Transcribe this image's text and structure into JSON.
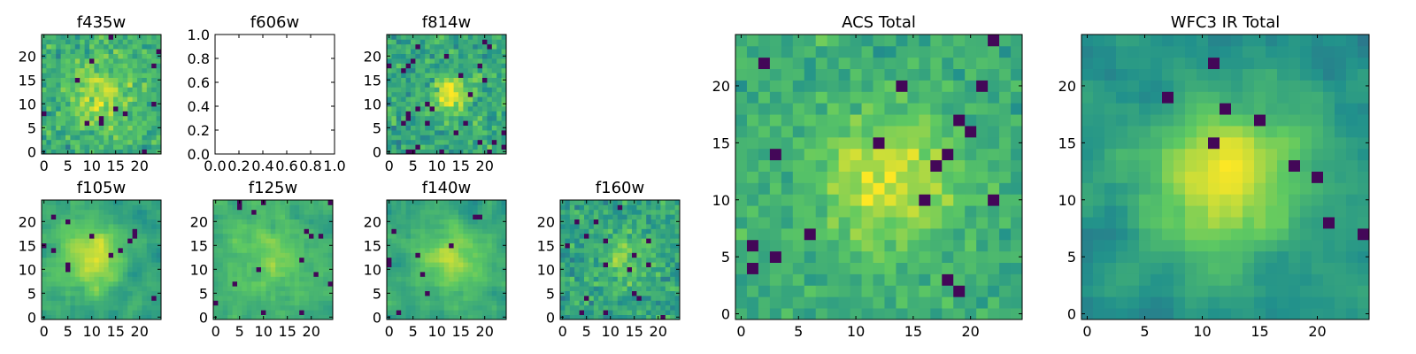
{
  "figure": {
    "background": "#ffffff",
    "frame_color": "#000000"
  },
  "colormap": {
    "name": "viridis",
    "stops": [
      "#440154",
      "#3b528b",
      "#21918c",
      "#5ec962",
      "#fde725"
    ]
  },
  "chart_data": [
    {
      "type": "heatmap",
      "key": "f435w",
      "title": "f435w",
      "size": 25,
      "empty": false,
      "seed": 11,
      "smooth": 0,
      "noise": 1.0,
      "blob": {
        "x": 12,
        "y": 12,
        "r": 5,
        "amp": 0.25
      },
      "base": 0.62,
      "spread": 0.27,
      "dark_frac": 0.025,
      "xticks": [
        "0",
        "5",
        "10",
        "15",
        "20"
      ],
      "yticks": [
        "0",
        "5",
        "10",
        "15",
        "20"
      ],
      "xlim": [
        -0.5,
        24.5
      ],
      "ylim": [
        -0.5,
        24.5
      ]
    },
    {
      "type": "heatmap",
      "key": "f606w",
      "title": "f606w",
      "size": 25,
      "empty": true,
      "xticks": [
        "0.0",
        "0.2",
        "0.4",
        "0.6",
        "0.8",
        "1.0"
      ],
      "yticks": [
        "0.0",
        "0.2",
        "0.4",
        "0.6",
        "0.8",
        "1.0"
      ],
      "xlim": [
        0,
        1
      ],
      "ylim": [
        0,
        1
      ]
    },
    {
      "type": "heatmap",
      "key": "f814w",
      "title": "f814w",
      "size": 25,
      "empty": false,
      "seed": 23,
      "smooth": 0,
      "noise": 1.0,
      "blob": {
        "x": 13,
        "y": 12,
        "r": 2.5,
        "amp": 0.45
      },
      "base": 0.6,
      "spread": 0.28,
      "dark_frac": 0.03,
      "xticks": [
        "0",
        "5",
        "10",
        "15",
        "20"
      ],
      "yticks": [
        "0",
        "5",
        "10",
        "15",
        "20"
      ],
      "xlim": [
        -0.5,
        24.5
      ],
      "ylim": [
        -0.5,
        24.5
      ]
    },
    {
      "type": "heatmap",
      "key": "f105w",
      "title": "f105w",
      "size": 25,
      "empty": false,
      "seed": 37,
      "smooth": 1,
      "noise": 0.8,
      "blob": {
        "x": 10,
        "y": 13,
        "r": 5,
        "amp": 0.35
      },
      "base": 0.58,
      "spread": 0.26,
      "dark_frac": 0.02,
      "xticks": [
        "0",
        "5",
        "10",
        "15",
        "20"
      ],
      "yticks": [
        "0",
        "5",
        "10",
        "15",
        "20"
      ],
      "xlim": [
        -0.5,
        24.5
      ],
      "ylim": [
        -0.5,
        24.5
      ]
    },
    {
      "type": "heatmap",
      "key": "f125w",
      "title": "f125w",
      "size": 25,
      "empty": false,
      "seed": 41,
      "smooth": 1,
      "noise": 0.8,
      "blob": {
        "x": 12,
        "y": 12,
        "r": 6,
        "amp": 0.15
      },
      "base": 0.62,
      "spread": 0.24,
      "dark_frac": 0.02,
      "xticks": [
        "0",
        "5",
        "10",
        "15",
        "20"
      ],
      "yticks": [
        "0",
        "5",
        "10",
        "15",
        "20"
      ],
      "xlim": [
        -0.5,
        24.5
      ],
      "ylim": [
        -0.5,
        24.5
      ]
    },
    {
      "type": "heatmap",
      "key": "f140w",
      "title": "f140w",
      "size": 25,
      "empty": false,
      "seed": 53,
      "smooth": 1,
      "noise": 0.8,
      "blob": {
        "x": 13,
        "y": 12,
        "r": 5,
        "amp": 0.25
      },
      "base": 0.6,
      "spread": 0.25,
      "dark_frac": 0.02,
      "xticks": [
        "0",
        "5",
        "10",
        "15",
        "20"
      ],
      "yticks": [
        "0",
        "5",
        "10",
        "15",
        "20"
      ],
      "xlim": [
        -0.5,
        24.5
      ],
      "ylim": [
        -0.5,
        24.5
      ]
    },
    {
      "type": "heatmap",
      "key": "f160w",
      "title": "f160w",
      "size": 25,
      "empty": false,
      "seed": 67,
      "smooth": 0,
      "noise": 1.0,
      "blob": {
        "x": 13,
        "y": 12,
        "r": 4,
        "amp": 0.2
      },
      "base": 0.58,
      "spread": 0.27,
      "dark_frac": 0.03,
      "xticks": [
        "0",
        "5",
        "10",
        "15",
        "20"
      ],
      "yticks": [
        "0",
        "5",
        "10",
        "15",
        "20"
      ],
      "xlim": [
        -0.5,
        24.5
      ],
      "ylim": [
        -0.5,
        24.5
      ]
    },
    {
      "type": "heatmap",
      "key": "acs",
      "title": "ACS Total",
      "size": 25,
      "empty": false,
      "seed": 79,
      "smooth": 0,
      "noise": 1.0,
      "blob": {
        "x": 13,
        "y": 12,
        "r": 4,
        "amp": 0.3
      },
      "base": 0.63,
      "spread": 0.2,
      "dark_frac": 0.02,
      "xticks": [
        "0",
        "5",
        "10",
        "15",
        "20"
      ],
      "yticks": [
        "0",
        "5",
        "10",
        "15",
        "20"
      ],
      "xlim": [
        -0.5,
        24.5
      ],
      "ylim": [
        -0.5,
        24.5
      ]
    },
    {
      "type": "heatmap",
      "key": "wfc3",
      "title": "WFC3 IR Total",
      "size": 25,
      "empty": false,
      "seed": 97,
      "smooth": 1,
      "noise": 0.7,
      "blob": {
        "x": 12,
        "y": 12,
        "r": 5,
        "amp": 0.45
      },
      "base": 0.5,
      "spread": 0.28,
      "dark_frac": 0.015,
      "xticks": [
        "0",
        "5",
        "10",
        "15",
        "20"
      ],
      "yticks": [
        "0",
        "5",
        "10",
        "15",
        "20"
      ],
      "xlim": [
        -0.5,
        24.5
      ],
      "ylim": [
        -0.5,
        24.5
      ]
    }
  ]
}
